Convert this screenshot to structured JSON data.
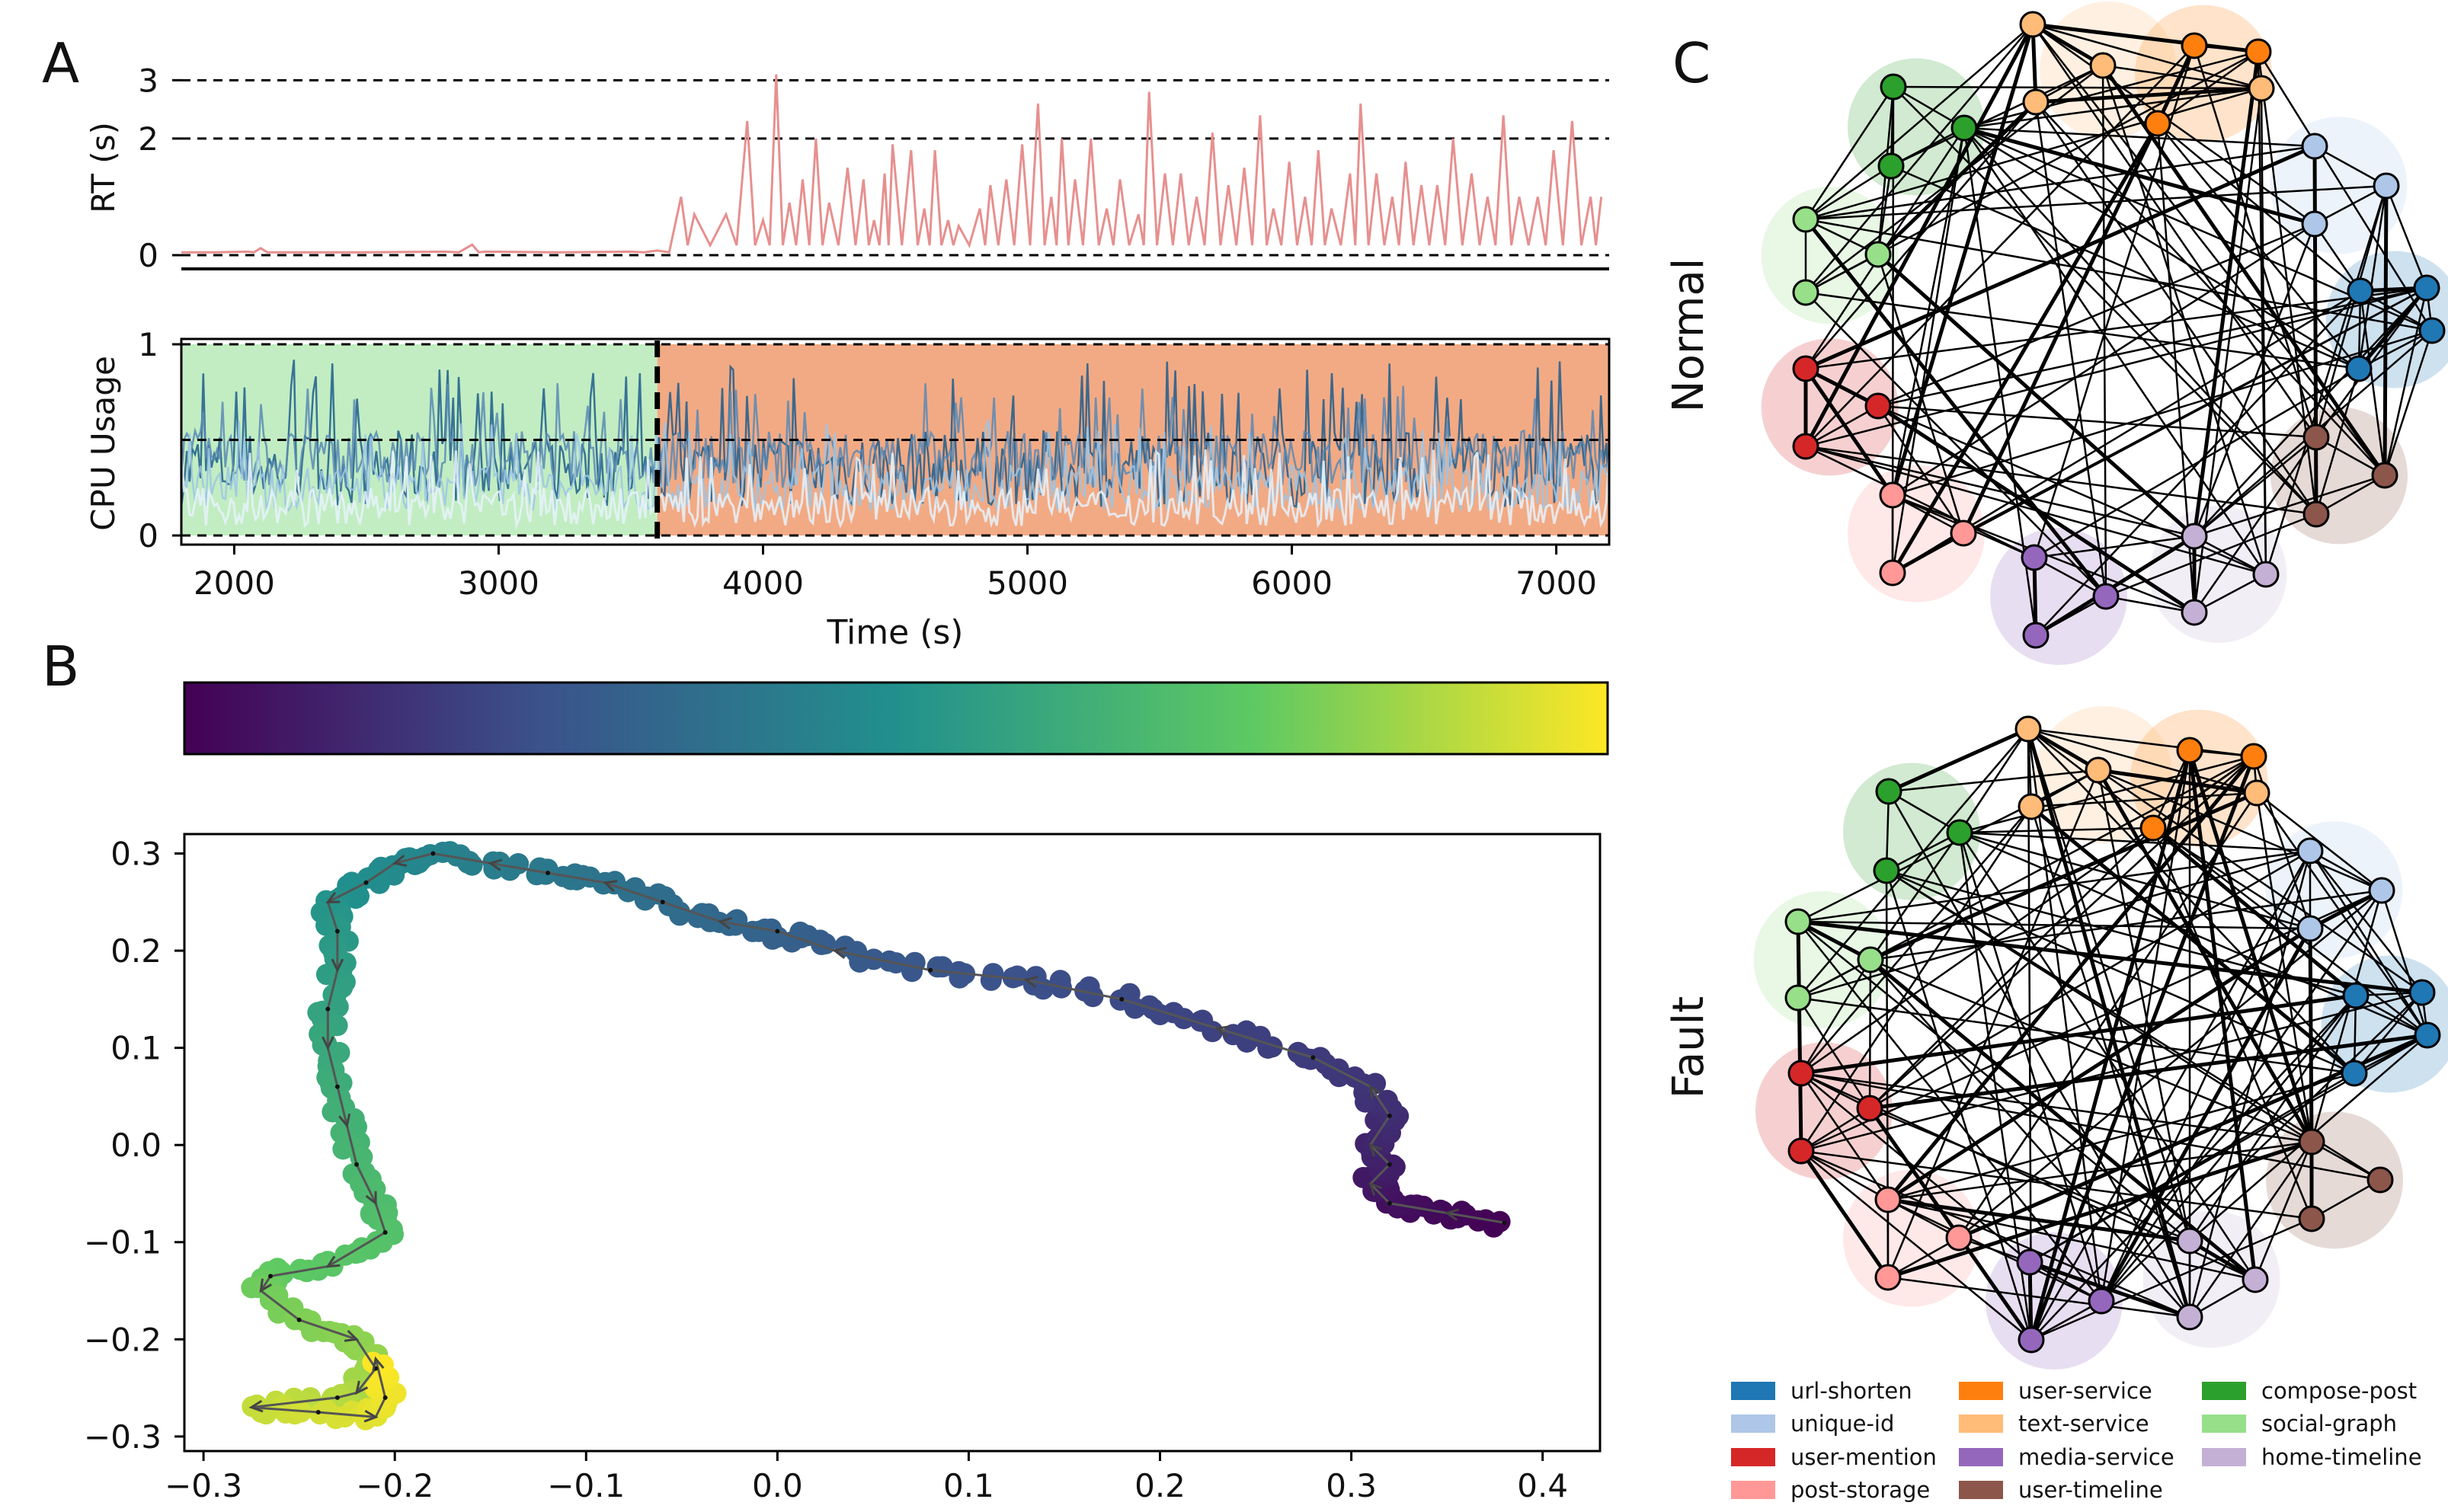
{
  "panel_labels": {
    "a": "A",
    "b": "B",
    "c": "C"
  },
  "chart_data": [
    {
      "id": "rt",
      "type": "line",
      "ylabel": "RT (s)",
      "yticks": [
        "0",
        "2",
        "3"
      ],
      "ylim": [
        0,
        3.2
      ],
      "xlim": [
        1800,
        7200
      ],
      "hlines": [
        0,
        2,
        3
      ],
      "series": [
        {
          "color": "#e6908f",
          "points": [
            [
              1800,
              0.05
            ],
            [
              2050,
              0.06
            ],
            [
              2100,
              0.12
            ],
            [
              2150,
              0.05
            ],
            [
              2800,
              0.06
            ],
            [
              2900,
              0.18
            ],
            [
              2950,
              0.06
            ],
            [
              3500,
              0.06
            ],
            [
              3600,
              0.08
            ],
            [
              3690,
              1.0
            ],
            [
              3740,
              0.7
            ],
            [
              3860,
              0.7
            ],
            [
              3940,
              2.3
            ],
            [
              4000,
              0.6
            ],
            [
              4050,
              3.1
            ],
            [
              4100,
              0.9
            ],
            [
              4150,
              1.3
            ],
            [
              4200,
              2.0
            ],
            [
              4250,
              0.9
            ],
            [
              4320,
              1.5
            ],
            [
              4380,
              1.3
            ],
            [
              4420,
              0.6
            ],
            [
              4460,
              1.4
            ],
            [
              4490,
              1.9
            ],
            [
              4560,
              1.8
            ],
            [
              4610,
              0.8
            ],
            [
              4650,
              1.8
            ],
            [
              4700,
              0.6
            ],
            [
              4740,
              0.5
            ],
            [
              4820,
              0.8
            ],
            [
              4860,
              1.2
            ],
            [
              4920,
              1.3
            ],
            [
              4980,
              1.9
            ],
            [
              5040,
              2.6
            ],
            [
              5090,
              1.0
            ],
            [
              5130,
              2.0
            ],
            [
              5180,
              1.3
            ],
            [
              5240,
              2.0
            ],
            [
              5300,
              0.8
            ],
            [
              5350,
              1.3
            ],
            [
              5420,
              0.7
            ],
            [
              5460,
              2.8
            ],
            [
              5520,
              1.4
            ],
            [
              5580,
              1.4
            ],
            [
              5640,
              1.0
            ],
            [
              5700,
              2.1
            ],
            [
              5760,
              1.2
            ],
            [
              5820,
              1.5
            ],
            [
              5880,
              2.4
            ],
            [
              5930,
              0.8
            ],
            [
              5990,
              1.6
            ],
            [
              6050,
              1.0
            ],
            [
              6100,
              1.8
            ],
            [
              6150,
              0.8
            ],
            [
              6220,
              1.4
            ],
            [
              6260,
              2.6
            ],
            [
              6320,
              1.4
            ],
            [
              6380,
              1.0
            ],
            [
              6430,
              1.6
            ],
            [
              6490,
              1.2
            ],
            [
              6550,
              1.2
            ],
            [
              6610,
              2.0
            ],
            [
              6680,
              1.4
            ],
            [
              6740,
              1.0
            ],
            [
              6800,
              2.4
            ],
            [
              6860,
              1.0
            ],
            [
              6930,
              1.0
            ],
            [
              6990,
              1.8
            ],
            [
              7060,
              2.3
            ],
            [
              7130,
              1.0
            ],
            [
              7170,
              1.0
            ]
          ]
        }
      ]
    },
    {
      "id": "cpu",
      "type": "area",
      "ylabel": "CPU Usage",
      "xlabel": "Time (s)",
      "xticks": [
        "2000",
        "3000",
        "4000",
        "5000",
        "6000",
        "7000"
      ],
      "yticks": [
        "0",
        "1"
      ],
      "ylim": [
        0,
        1
      ],
      "xlim": [
        1800,
        7200
      ],
      "hlines": [
        0,
        0.5,
        1
      ],
      "fault_onset": 3600,
      "regions": [
        {
          "from": 1800,
          "to": 3600,
          "color": "#c2edc2"
        },
        {
          "from": 3600,
          "to": 7200,
          "color": "#f2aa84"
        }
      ],
      "series": [
        {
          "color": "#1e5d8c",
          "spike_height": 0.92,
          "base": 0.35,
          "noise": 0.2
        },
        {
          "color": "#5b8ab5",
          "spike_height": 0.8,
          "base": 0.4,
          "noise": 0.15
        },
        {
          "color": "#9cc6e4",
          "spike_height": 0.6,
          "base": 0.25,
          "noise": 0.12
        },
        {
          "color": "#e6f2fa",
          "spike_height": 0.45,
          "base": 0.15,
          "noise": 0.1
        }
      ]
    },
    {
      "id": "colorbar",
      "type": "heatmap",
      "colormap": "viridis",
      "colors": [
        "#440154",
        "#3b528b",
        "#21908d",
        "#5dc963",
        "#fde725"
      ]
    },
    {
      "id": "traj",
      "type": "scatter",
      "xticks": [
        "−0.3",
        "−0.2",
        "−0.1",
        "0.0",
        "0.1",
        "0.2",
        "0.3",
        "0.4"
      ],
      "yticks": [
        "−0.3",
        "−0.2",
        "−0.1",
        "0.0",
        "0.1",
        "0.2",
        "0.3"
      ],
      "xlim": [
        -0.31,
        0.43
      ],
      "ylim": [
        -0.315,
        0.32
      ],
      "path": [
        [
          0.38,
          -0.08
        ],
        [
          0.35,
          -0.07
        ],
        [
          0.32,
          -0.06
        ],
        [
          0.31,
          -0.04
        ],
        [
          0.32,
          -0.02
        ],
        [
          0.31,
          0.0
        ],
        [
          0.32,
          0.03
        ],
        [
          0.31,
          0.06
        ],
        [
          0.28,
          0.09
        ],
        [
          0.23,
          0.12
        ],
        [
          0.18,
          0.15
        ],
        [
          0.13,
          0.17
        ],
        [
          0.08,
          0.18
        ],
        [
          0.03,
          0.2
        ],
        [
          0.0,
          0.22
        ],
        [
          -0.03,
          0.23
        ],
        [
          -0.06,
          0.25
        ],
        [
          -0.09,
          0.27
        ],
        [
          -0.12,
          0.28
        ],
        [
          -0.15,
          0.29
        ],
        [
          -0.18,
          0.3
        ],
        [
          -0.2,
          0.29
        ],
        [
          -0.215,
          0.27
        ],
        [
          -0.235,
          0.25
        ],
        [
          -0.23,
          0.22
        ],
        [
          -0.23,
          0.18
        ],
        [
          -0.235,
          0.14
        ],
        [
          -0.235,
          0.1
        ],
        [
          -0.23,
          0.06
        ],
        [
          -0.225,
          0.02
        ],
        [
          -0.22,
          -0.02
        ],
        [
          -0.21,
          -0.06
        ],
        [
          -0.205,
          -0.09
        ],
        [
          -0.235,
          -0.125
        ],
        [
          -0.265,
          -0.135
        ],
        [
          -0.27,
          -0.15
        ],
        [
          -0.25,
          -0.18
        ],
        [
          -0.22,
          -0.2
        ],
        [
          -0.21,
          -0.23
        ],
        [
          -0.22,
          -0.255
        ],
        [
          -0.23,
          -0.26
        ],
        [
          -0.275,
          -0.27
        ],
        [
          -0.24,
          -0.275
        ],
        [
          -0.21,
          -0.28
        ],
        [
          -0.205,
          -0.26
        ],
        [
          -0.21,
          -0.22
        ]
      ]
    },
    {
      "id": "graphs",
      "type": "table",
      "titles": [
        "Normal",
        "Fault"
      ],
      "groups": [
        {
          "name": "url-shorten",
          "color": "#1f77b4"
        },
        {
          "name": "unique-id",
          "color": "#aec7e8"
        },
        {
          "name": "user-mention",
          "color": "#d62728"
        },
        {
          "name": "post-storage",
          "color": "#ff9896"
        },
        {
          "name": "user-service",
          "color": "#ff7f0e"
        },
        {
          "name": "text-service",
          "color": "#ffbb78"
        },
        {
          "name": "media-service",
          "color": "#9467bd"
        },
        {
          "name": "user-timeline",
          "color": "#8c564b"
        },
        {
          "name": "compose-post",
          "color": "#2ca02c"
        },
        {
          "name": "social-graph",
          "color": "#98df8a"
        },
        {
          "name": "home-timeline",
          "color": "#c5b0d5"
        }
      ]
    }
  ]
}
